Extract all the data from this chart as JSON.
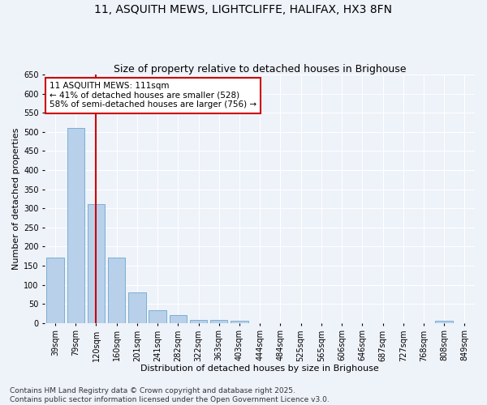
{
  "title_line1": "11, ASQUITH MEWS, LIGHTCLIFFE, HALIFAX, HX3 8FN",
  "title_line2": "Size of property relative to detached houses in Brighouse",
  "xlabel": "Distribution of detached houses by size in Brighouse",
  "ylabel": "Number of detached properties",
  "categories": [
    "39sqm",
    "79sqm",
    "120sqm",
    "160sqm",
    "201sqm",
    "241sqm",
    "282sqm",
    "322sqm",
    "363sqm",
    "403sqm",
    "444sqm",
    "484sqm",
    "525sqm",
    "565sqm",
    "606sqm",
    "646sqm",
    "687sqm",
    "727sqm",
    "768sqm",
    "808sqm",
    "849sqm"
  ],
  "values": [
    170,
    510,
    310,
    170,
    80,
    33,
    20,
    8,
    8,
    5,
    0,
    0,
    0,
    0,
    0,
    0,
    0,
    0,
    0,
    5,
    0
  ],
  "bar_color": "#b8d0ea",
  "bar_edge_color": "#7aafd4",
  "red_line_x": 2,
  "red_line_color": "#cc0000",
  "annotation_text": "11 ASQUITH MEWS: 111sqm\n← 41% of detached houses are smaller (528)\n58% of semi-detached houses are larger (756) →",
  "annotation_box_color": "#ffffff",
  "annotation_box_edge": "#cc0000",
  "ylim": [
    0,
    650
  ],
  "yticks": [
    0,
    50,
    100,
    150,
    200,
    250,
    300,
    350,
    400,
    450,
    500,
    550,
    600,
    650
  ],
  "background_color": "#eef2f9",
  "grid_color": "#ffffff",
  "footer_line1": "Contains HM Land Registry data © Crown copyright and database right 2025.",
  "footer_line2": "Contains public sector information licensed under the Open Government Licence v3.0.",
  "title_fontsize": 10,
  "subtitle_fontsize": 9,
  "axis_label_fontsize": 8,
  "tick_fontsize": 7,
  "annotation_fontsize": 7.5,
  "footer_fontsize": 6.5
}
